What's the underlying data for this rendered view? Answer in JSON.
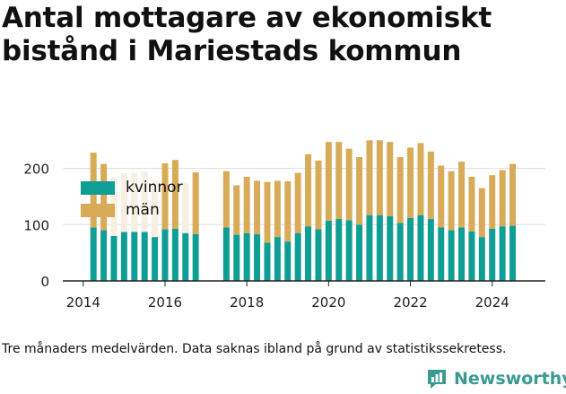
{
  "title": "Antal mottagare av ekonomiskt bistånd i Mariestads kommun",
  "footnote": "Tre månaders medelvärden. Data saknas ibland på grund av statistikssekretess.",
  "brand": {
    "name": "Newsworthy",
    "icon": "newsworthy-logo-icon",
    "color": "#3b9b92"
  },
  "colors": {
    "kvinnor": "#0f9e94",
    "man": "#d8ab59",
    "man_faded": "#f7efe1",
    "grid": "#dddddd",
    "axis": "#222222"
  },
  "legend": {
    "kvinnor": "kvinnor",
    "man": "män"
  },
  "chart_data": {
    "type": "bar",
    "stacked": true,
    "x_axis": {
      "type": "time",
      "range": [
        2013.5,
        2025.3
      ],
      "ticks": [
        "2014",
        "2016",
        "2018",
        "2020",
        "2022",
        "2024"
      ]
    },
    "y_axis": {
      "range": [
        0,
        260
      ],
      "ticks": [
        0,
        100,
        200
      ]
    },
    "grid": true,
    "legend_placement": "top-left",
    "note": "",
    "series": [
      {
        "name": "kvinnor",
        "values": [
          95,
          90,
          80,
          87,
          87,
          87,
          78,
          92,
          93,
          85,
          83,
          95,
          82,
          85,
          83,
          68,
          78,
          70,
          85,
          97,
          92,
          107,
          110,
          108,
          100,
          117,
          117,
          115,
          103,
          112,
          117,
          110,
          95,
          90,
          95,
          88,
          78,
          93,
          97,
          98
        ]
      },
      {
        "name": "män",
        "values": [
          133,
          118,
          105,
          105,
          105,
          107,
          100,
          117,
          122,
          90,
          110,
          100,
          88,
          100,
          95,
          108,
          100,
          107,
          107,
          128,
          122,
          140,
          137,
          127,
          120,
          133,
          133,
          132,
          117,
          125,
          128,
          120,
          110,
          105,
          117,
          97,
          87,
          95,
          100,
          110
        ]
      },
      {
        "name": "män_faded",
        "values": [
          0,
          0,
          0,
          0,
          0,
          0,
          0,
          0,
          0,
          0,
          0,
          0,
          0,
          0,
          0,
          0,
          0,
          0,
          0,
          0,
          0,
          0,
          0,
          0,
          0,
          0,
          0,
          0,
          0,
          0,
          0,
          0,
          0,
          0,
          0,
          0,
          0,
          0,
          0,
          0
        ]
      }
    ],
    "x": [
      "2014-04",
      "2014-07",
      "2014-10",
      "2015-01",
      "2015-04",
      "2015-07",
      "2015-10",
      "2016-01",
      "2016-04",
      "2016-07",
      "2016-10",
      "2017-07",
      "2017-10",
      "2018-01",
      "2018-04",
      "2018-07",
      "2018-10",
      "2019-01",
      "2019-04",
      "2019-07",
      "2019-10",
      "2020-01",
      "2020-04",
      "2020-07",
      "2020-10",
      "2021-01",
      "2021-04",
      "2021-07",
      "2021-10",
      "2022-01",
      "2022-04",
      "2022-07",
      "2022-10",
      "2023-01",
      "2023-04",
      "2023-07",
      "2023-10",
      "2024-01",
      "2024-04",
      "2024-07"
    ],
    "faded_men_indices": [
      2,
      3,
      4,
      5,
      6,
      9
    ]
  }
}
